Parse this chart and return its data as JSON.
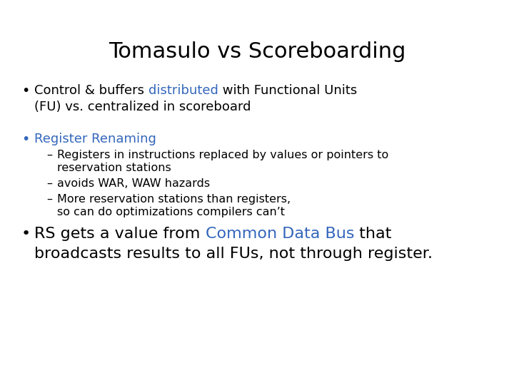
{
  "title": "Tomasulo vs Scoreboarding",
  "title_fontsize": 22,
  "title_color": "#000000",
  "background_color": "#ffffff",
  "bullet_color": "#000000",
  "highlight_color": "#3366bb",
  "body_fontsize": 13,
  "sub_fontsize": 11.5,
  "line1_parts": [
    {
      "text": "Control & buffers ",
      "color": "#000000"
    },
    {
      "text": "distributed",
      "color": "#3366bb"
    },
    {
      "text": " with Functional Units",
      "color": "#000000"
    }
  ],
  "line2": "(FU) vs. centralized in scoreboard",
  "bullet2": "Register Renaming",
  "sub_bullets": [
    [
      "Registers in instructions replaced by values or pointers to",
      "reservation stations"
    ],
    [
      "avoids WAR, WAW hazards"
    ],
    [
      "More reservation stations than registers,",
      "so can do optimizations compilers can’t"
    ]
  ],
  "line_b3_parts": [
    {
      "text": "RS gets a value from ",
      "color": "#000000"
    },
    {
      "text": "Common Data Bus",
      "color": "#3366bb"
    },
    {
      "text": " that",
      "color": "#000000"
    }
  ],
  "line_b3_2": "broadcasts results to all FUs, not through register."
}
